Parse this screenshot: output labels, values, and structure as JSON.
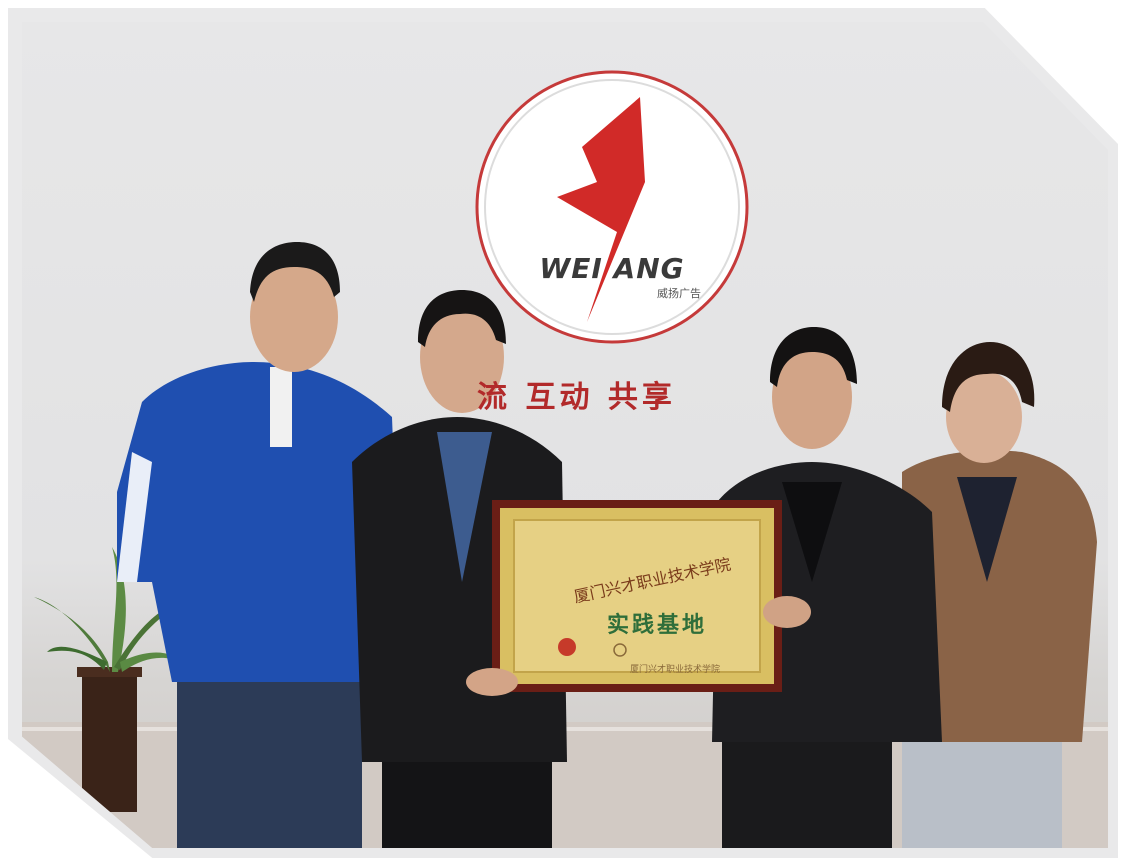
{
  "logo": {
    "brand_text": "WEI ANG",
    "sub_text": "威扬广告",
    "registered_mark": "®"
  },
  "slogan": {
    "text": "流 互动 共享"
  },
  "plaque": {
    "line1": "厦门兴才职业技术学院",
    "line2": "实践基地",
    "footer_mark": "厦门兴才职业技术学院"
  }
}
